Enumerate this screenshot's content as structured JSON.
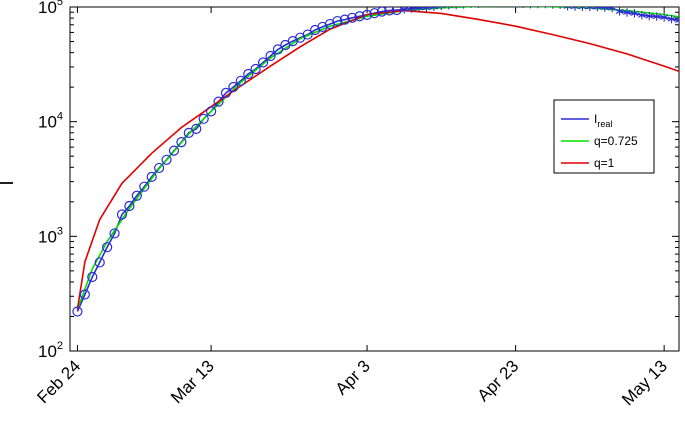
{
  "chart_data": {
    "type": "line",
    "title": "",
    "xlabel": "",
    "ylabel": "I",
    "yscale": "log",
    "ylim": [
      100,
      100000
    ],
    "xlim": [
      "2020-02-23",
      "2020-05-15"
    ],
    "x_ticks": [
      {
        "date": "2020-02-24",
        "label": "Feb 24"
      },
      {
        "date": "2020-03-13",
        "label": "Mar 13"
      },
      {
        "date": "2020-04-03",
        "label": "Apr 3"
      },
      {
        "date": "2020-04-23",
        "label": "Apr 23"
      },
      {
        "date": "2020-05-13",
        "label": "May 13"
      }
    ],
    "y_ticks": [
      {
        "value": 100,
        "base": "10",
        "exp": "2"
      },
      {
        "value": 1000,
        "base": "10",
        "exp": "3"
      },
      {
        "value": 10000,
        "base": "10",
        "exp": "4"
      },
      {
        "value": 100000,
        "base": "10",
        "exp": "5"
      }
    ],
    "grid": false,
    "legend_position": "right-middle",
    "series": [
      {
        "name": "I_real",
        "label_main": "I",
        "label_sub": "real",
        "color": "#2b2bd6",
        "marker": "circle-then-asterisk",
        "marker_switch_date": "2020-04-08",
        "x": [
          "2020-02-24",
          "2020-02-25",
          "2020-02-26",
          "2020-02-27",
          "2020-02-28",
          "2020-02-29",
          "2020-03-01",
          "2020-03-02",
          "2020-03-03",
          "2020-03-04",
          "2020-03-05",
          "2020-03-06",
          "2020-03-07",
          "2020-03-08",
          "2020-03-09",
          "2020-03-10",
          "2020-03-11",
          "2020-03-12",
          "2020-03-13",
          "2020-03-14",
          "2020-03-15",
          "2020-03-16",
          "2020-03-17",
          "2020-03-18",
          "2020-03-19",
          "2020-03-20",
          "2020-03-21",
          "2020-03-22",
          "2020-03-23",
          "2020-03-24",
          "2020-03-25",
          "2020-03-26",
          "2020-03-27",
          "2020-03-28",
          "2020-03-29",
          "2020-03-30",
          "2020-03-31",
          "2020-04-01",
          "2020-04-02",
          "2020-04-03",
          "2020-04-04",
          "2020-04-05",
          "2020-04-06",
          "2020-04-07",
          "2020-04-08",
          "2020-04-09",
          "2020-04-10",
          "2020-04-11",
          "2020-04-12",
          "2020-04-13",
          "2020-04-14",
          "2020-04-15",
          "2020-04-16",
          "2020-04-17",
          "2020-04-18",
          "2020-04-19",
          "2020-04-20",
          "2020-04-21",
          "2020-04-22",
          "2020-04-23",
          "2020-04-24",
          "2020-04-25",
          "2020-04-26",
          "2020-04-27",
          "2020-04-28",
          "2020-04-29",
          "2020-04-30",
          "2020-05-01",
          "2020-05-02",
          "2020-05-03",
          "2020-05-04",
          "2020-05-05",
          "2020-05-06",
          "2020-05-07",
          "2020-05-08",
          "2020-05-09",
          "2020-05-10",
          "2020-05-11",
          "2020-05-12",
          "2020-05-13",
          "2020-05-14",
          "2020-05-15"
        ],
        "values": [
          221,
          311,
          442,
          592,
          804,
          1060,
          1550,
          1840,
          2260,
          2710,
          3300,
          3950,
          4650,
          5590,
          6630,
          7990,
          8650,
          10590,
          12300,
          14950,
          17830,
          20060,
          22720,
          26050,
          28800,
          32800,
          37400,
          42700,
          46600,
          50400,
          54000,
          57500,
          63000,
          67000,
          71000,
          75400,
          77600,
          80500,
          83000,
          85400,
          88300,
          91200,
          93200,
          94100,
          95300,
          96900,
          98300,
          98700,
          100200,
          102300,
          103600,
          104300,
          105400,
          106600,
          106800,
          107700,
          108300,
          108200,
          107700,
          106900,
          106500,
          105800,
          106100,
          106100,
          105200,
          104700,
          101500,
          100900,
          100700,
          100200,
          99900,
          99000,
          98000,
          91500,
          89600,
          87900,
          84800,
          83300,
          82500,
          81200,
          78500,
          76400
        ]
      },
      {
        "name": "q=0.725",
        "color": "#00e000",
        "x": [
          "2020-02-24",
          "2020-02-26",
          "2020-02-28",
          "2020-03-02",
          "2020-03-06",
          "2020-03-10",
          "2020-03-13",
          "2020-03-17",
          "2020-03-21",
          "2020-03-25",
          "2020-03-29",
          "2020-04-03",
          "2020-04-08",
          "2020-04-13",
          "2020-04-18",
          "2020-04-23",
          "2020-04-28",
          "2020-05-03",
          "2020-05-08",
          "2020-05-13",
          "2020-05-15"
        ],
        "values": [
          230,
          520,
          900,
          1750,
          3900,
          7800,
          12300,
          22000,
          36000,
          53000,
          68000,
          83000,
          93000,
          98500,
          101000,
          101500,
          100500,
          98000,
          93000,
          86000,
          82000
        ]
      },
      {
        "name": "q=1",
        "color": "#e00000",
        "x": [
          "2020-02-24",
          "2020-02-25",
          "2020-02-27",
          "2020-03-01",
          "2020-03-05",
          "2020-03-09",
          "2020-03-13",
          "2020-03-17",
          "2020-03-21",
          "2020-03-25",
          "2020-03-29",
          "2020-04-03",
          "2020-04-08",
          "2020-04-13",
          "2020-04-18",
          "2020-04-23",
          "2020-04-28",
          "2020-05-03",
          "2020-05-08",
          "2020-05-13",
          "2020-05-15"
        ],
        "values": [
          230,
          600,
          1400,
          2900,
          5300,
          8900,
          13500,
          20500,
          30500,
          45000,
          64000,
          86000,
          93000,
          88000,
          78000,
          68000,
          57500,
          48000,
          39000,
          30500,
          27500
        ]
      }
    ]
  }
}
